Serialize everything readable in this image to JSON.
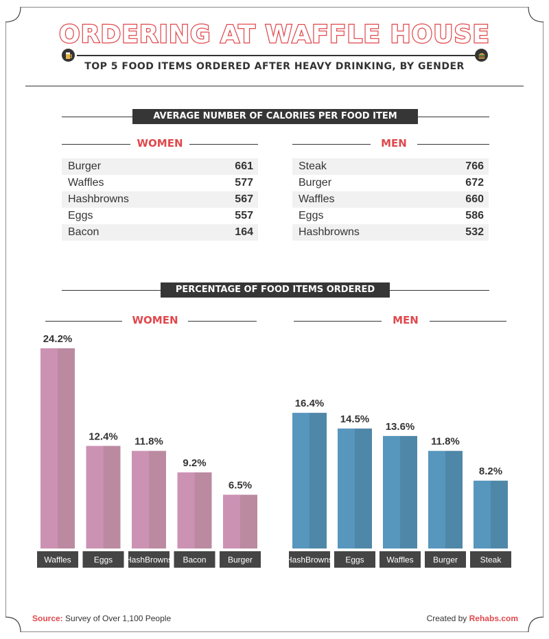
{
  "header": {
    "title": "ORDERING AT WAFFLE HOUSE",
    "subtitle": "TOP 5 FOOD ITEMS ORDERED AFTER HEAVY DRINKING, BY GENDER"
  },
  "calories": {
    "banner": "AVERAGE NUMBER OF CALORIES PER FOOD ITEM",
    "women": {
      "label": "WOMEN",
      "rows": [
        {
          "item": "Burger",
          "value": "661"
        },
        {
          "item": "Waffles",
          "value": "577"
        },
        {
          "item": "Hashbrowns",
          "value": "567"
        },
        {
          "item": "Eggs",
          "value": "557"
        },
        {
          "item": "Bacon",
          "value": "164"
        }
      ]
    },
    "men": {
      "label": "MEN",
      "rows": [
        {
          "item": "Steak",
          "value": "766"
        },
        {
          "item": "Burger",
          "value": "672"
        },
        {
          "item": "Waffles",
          "value": "660"
        },
        {
          "item": "Eggs",
          "value": "586"
        },
        {
          "item": "Hashbrowns",
          "value": "532"
        }
      ]
    }
  },
  "percentage_banner": "PERCENTAGE OF FOOD ITEMS ORDERED",
  "chart_data": [
    {
      "type": "bar",
      "title": "WOMEN",
      "categories": [
        "Waffles",
        "Eggs",
        "HashBrowns",
        "Bacon",
        "Burger"
      ],
      "values": [
        24.2,
        12.4,
        11.8,
        9.2,
        6.5
      ],
      "value_labels": [
        "24.2%",
        "12.4%",
        "11.8%",
        "9.2%",
        "6.5%"
      ],
      "color": "#cc92b4",
      "shade_color": "#bb8aa1",
      "ylim": [
        0,
        24.2
      ],
      "grid": false
    },
    {
      "type": "bar",
      "title": "MEN",
      "categories": [
        "HashBrowns",
        "Eggs",
        "Waffles",
        "Burger",
        "Steak"
      ],
      "values": [
        16.4,
        14.5,
        13.6,
        11.8,
        8.2
      ],
      "value_labels": [
        "16.4%",
        "14.5%",
        "13.6%",
        "11.8%",
        "8.2%"
      ],
      "color": "#5796bd",
      "shade_color": "#4f87a8",
      "ylim": [
        0,
        24.2
      ],
      "grid": false
    }
  ],
  "footer": {
    "source_label": "Source:",
    "source_text": "Survey of Over 1,100 People",
    "created_prefix": "Created by",
    "created_brand": "Rehabs.com"
  },
  "colors": {
    "accent": "#e0484c",
    "dark": "#363636",
    "women_bar": "#cc92b4",
    "men_bar": "#5796bd"
  },
  "icons": [
    "beer-mug-icon",
    "burger-icon"
  ]
}
